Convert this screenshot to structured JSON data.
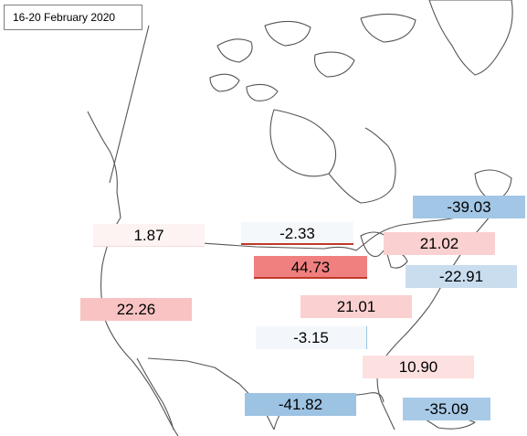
{
  "date_label": "16-20 February 2020",
  "regions": [
    {
      "id": "pacific-northwest",
      "value": "1.87",
      "color": "#fdf3f3"
    },
    {
      "id": "upper-midwest",
      "value": "-2.33",
      "color": "#f5f8fb"
    },
    {
      "id": "central-plains",
      "value": "44.73",
      "color": "#f08080"
    },
    {
      "id": "west",
      "value": "22.26",
      "color": "#f9c3c3"
    },
    {
      "id": "mid-south",
      "value": "21.01",
      "color": "#fbd0d0"
    },
    {
      "id": "south-central",
      "value": "-3.15",
      "color": "#f3f7fb"
    },
    {
      "id": "gulf-coast",
      "value": "-41.82",
      "color": "#9dc3e3"
    },
    {
      "id": "northeast",
      "value": "-39.03",
      "color": "#a2c6e5"
    },
    {
      "id": "great-lakes",
      "value": "21.02",
      "color": "#fbd0d0"
    },
    {
      "id": "mid-atlantic",
      "value": "-22.91",
      "color": "#c9ddef"
    },
    {
      "id": "southeast",
      "value": "10.90",
      "color": "#fde0e0"
    },
    {
      "id": "florida",
      "value": "-35.09",
      "color": "#a8cae7"
    }
  ]
}
